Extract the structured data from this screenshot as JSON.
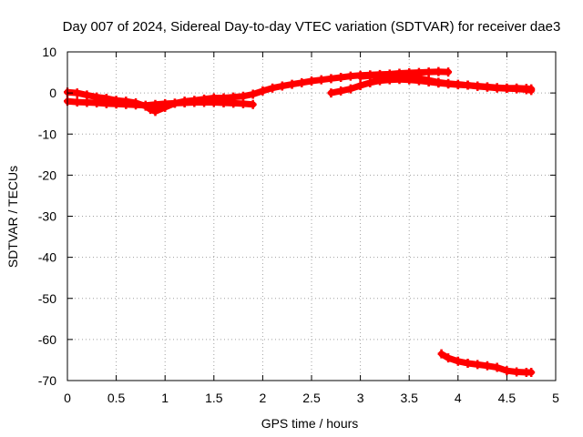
{
  "chart_data": {
    "type": "scatter",
    "title": "Day 007 of 2024, Sidereal Day-to-day VTEC variation (SDTVAR) for receiver dae3",
    "xlabel": "GPS time / hours",
    "ylabel": "SDTVAR / TECUs",
    "xlim": [
      0,
      5
    ],
    "ylim": [
      -70,
      10
    ],
    "xticks": [
      0,
      0.5,
      1,
      1.5,
      2,
      2.5,
      3,
      3.5,
      4,
      4.5,
      5
    ],
    "yticks": [
      -70,
      -60,
      -50,
      -40,
      -30,
      -20,
      -10,
      0,
      10
    ],
    "xtick_labels": [
      "0",
      "0.5",
      "1",
      "1.5",
      "2",
      "2.5",
      "3",
      "3.5",
      "4",
      "4.5",
      "5"
    ],
    "ytick_labels": [
      "-70",
      "-60",
      "-50",
      "-40",
      "-30",
      "-20",
      "-10",
      "0",
      "10"
    ],
    "grid": true,
    "color": "#ff0000",
    "series": [
      {
        "points": [
          [
            0.0,
            0.2
          ],
          [
            0.1,
            0.0
          ],
          [
            0.2,
            -0.5
          ],
          [
            0.3,
            -1.0
          ],
          [
            0.4,
            -1.3
          ],
          [
            0.5,
            -1.8
          ],
          [
            0.6,
            -2.0
          ],
          [
            0.7,
            -2.4
          ],
          [
            0.8,
            -3.2
          ],
          [
            0.85,
            -4.0
          ],
          [
            0.9,
            -4.5
          ],
          [
            1.0,
            -3.5
          ],
          [
            1.1,
            -2.5
          ],
          [
            1.2,
            -2.0
          ],
          [
            1.3,
            -1.8
          ],
          [
            1.4,
            -1.5
          ],
          [
            1.5,
            -1.2
          ],
          [
            1.6,
            -1.2
          ],
          [
            1.7,
            -1.0
          ],
          [
            1.8,
            -0.8
          ],
          [
            1.9,
            -0.3
          ],
          [
            2.0,
            0.5
          ],
          [
            2.1,
            1.2
          ],
          [
            2.2,
            1.7
          ],
          [
            2.3,
            2.1
          ],
          [
            2.4,
            2.5
          ],
          [
            2.5,
            2.9
          ],
          [
            2.6,
            3.2
          ],
          [
            2.7,
            3.5
          ],
          [
            2.8,
            3.8
          ],
          [
            2.9,
            4.1
          ],
          [
            3.0,
            4.3
          ],
          [
            3.1,
            4.4
          ],
          [
            3.2,
            4.5
          ],
          [
            3.3,
            4.6
          ],
          [
            3.4,
            4.8
          ],
          [
            3.5,
            4.9
          ],
          [
            3.6,
            5.0
          ],
          [
            3.7,
            5.1
          ],
          [
            3.8,
            5.2
          ],
          [
            3.9,
            5.1
          ]
        ]
      },
      {
        "points": [
          [
            0.0,
            -2.0
          ],
          [
            0.1,
            -2.2
          ],
          [
            0.2,
            -2.3
          ],
          [
            0.3,
            -2.4
          ],
          [
            0.4,
            -2.6
          ],
          [
            0.5,
            -2.7
          ],
          [
            0.6,
            -2.8
          ],
          [
            0.7,
            -2.9
          ],
          [
            0.8,
            -3.0
          ],
          [
            0.9,
            -2.8
          ],
          [
            1.0,
            -2.6
          ],
          [
            1.1,
            -2.5
          ],
          [
            1.2,
            -2.4
          ],
          [
            1.3,
            -2.3
          ],
          [
            1.4,
            -2.3
          ],
          [
            1.5,
            -2.3
          ],
          [
            1.6,
            -2.4
          ],
          [
            1.7,
            -2.5
          ],
          [
            1.8,
            -2.6
          ],
          [
            1.9,
            -2.8
          ]
        ]
      },
      {
        "points": [
          [
            2.7,
            0.0
          ],
          [
            2.8,
            0.5
          ],
          [
            2.9,
            1.0
          ],
          [
            3.0,
            1.8
          ],
          [
            3.1,
            2.5
          ],
          [
            3.2,
            3.0
          ],
          [
            3.3,
            3.2
          ],
          [
            3.4,
            3.3
          ],
          [
            3.5,
            3.2
          ],
          [
            3.6,
            3.0
          ],
          [
            3.7,
            2.7
          ],
          [
            3.8,
            2.4
          ],
          [
            3.9,
            2.2
          ],
          [
            4.0,
            2.0
          ],
          [
            4.1,
            1.9
          ],
          [
            4.2,
            1.6
          ],
          [
            4.3,
            1.4
          ],
          [
            4.4,
            1.2
          ],
          [
            4.5,
            1.1
          ],
          [
            4.6,
            1.0
          ],
          [
            4.7,
            0.8
          ],
          [
            4.75,
            0.6
          ]
        ]
      },
      {
        "points": [
          [
            3.0,
            4.0
          ],
          [
            3.1,
            4.2
          ],
          [
            3.2,
            4.3
          ],
          [
            3.3,
            4.3
          ],
          [
            3.4,
            4.2
          ],
          [
            3.5,
            4.0
          ],
          [
            3.6,
            3.6
          ],
          [
            3.7,
            3.1
          ],
          [
            3.8,
            2.6
          ],
          [
            3.9,
            2.3
          ],
          [
            4.0,
            2.1
          ],
          [
            4.1,
            1.9
          ],
          [
            4.2,
            1.7
          ],
          [
            4.3,
            1.5
          ],
          [
            4.4,
            1.3
          ],
          [
            4.5,
            1.2
          ],
          [
            4.6,
            1.2
          ],
          [
            4.7,
            1.1
          ],
          [
            4.75,
            1.0
          ]
        ]
      },
      {
        "points": [
          [
            3.83,
            -63.5
          ],
          [
            3.9,
            -64.5
          ],
          [
            4.0,
            -65.3
          ],
          [
            4.1,
            -65.8
          ],
          [
            4.2,
            -66.1
          ],
          [
            4.3,
            -66.4
          ],
          [
            4.4,
            -66.8
          ],
          [
            4.5,
            -67.6
          ],
          [
            4.6,
            -67.9
          ],
          [
            4.7,
            -68.0
          ],
          [
            4.75,
            -68.0
          ]
        ]
      }
    ]
  }
}
